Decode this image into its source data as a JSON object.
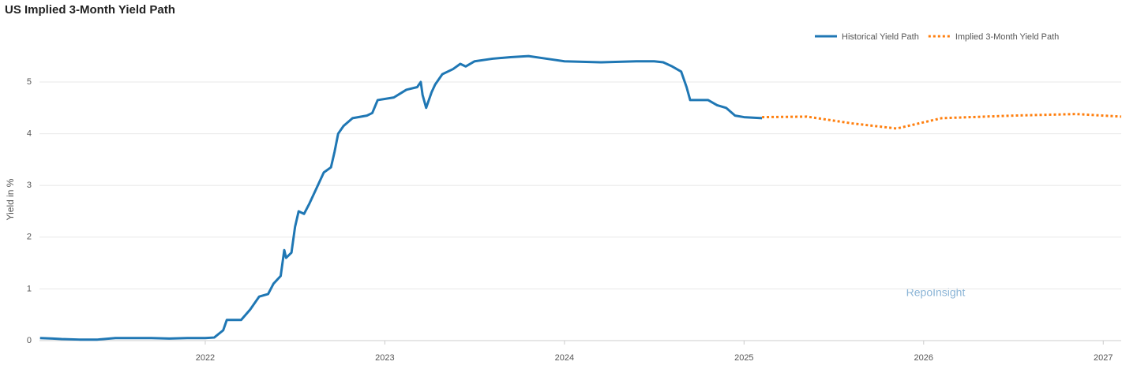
{
  "chart_data": {
    "type": "line",
    "title": "US Implied 3-Month Yield Path",
    "y_label": "Yield in %",
    "watermark": "RepoInsight",
    "xlim": [
      2021.077,
      2027.1
    ],
    "xticks": [
      2022,
      2023,
      2024,
      2025,
      2026,
      2027
    ],
    "ylim": [
      0,
      5.67
    ],
    "yticks": [
      0,
      1,
      2,
      3,
      4,
      5
    ],
    "grid": true,
    "legend": "top-right",
    "series": [
      {
        "name": "Historical Yield Path",
        "color": "#1f77b4",
        "style": "solid",
        "x": [
          2021.08,
          2021.15,
          2021.2,
          2021.3,
          2021.4,
          2021.5,
          2021.6,
          2021.7,
          2021.8,
          2021.9,
          2022.0,
          2022.05,
          2022.1,
          2022.12,
          2022.2,
          2022.25,
          2022.3,
          2022.35,
          2022.38,
          2022.42,
          2022.44,
          2022.45,
          2022.48,
          2022.5,
          2022.52,
          2022.55,
          2022.58,
          2022.62,
          2022.66,
          2022.7,
          2022.72,
          2022.74,
          2022.77,
          2022.82,
          2022.9,
          2022.93,
          2022.96,
          2023.05,
          2023.12,
          2023.18,
          2023.2,
          2023.21,
          2023.23,
          2023.26,
          2023.28,
          2023.32,
          2023.38,
          2023.42,
          2023.45,
          2023.5,
          2023.6,
          2023.7,
          2023.8,
          2023.9,
          2024.0,
          2024.2,
          2024.4,
          2024.5,
          2024.55,
          2024.6,
          2024.65,
          2024.68,
          2024.7,
          2024.8,
          2024.85,
          2024.9,
          2024.95,
          2025.0,
          2025.1
        ],
        "values": [
          0.05,
          0.04,
          0.03,
          0.02,
          0.02,
          0.05,
          0.05,
          0.05,
          0.04,
          0.05,
          0.05,
          0.06,
          0.2,
          0.4,
          0.4,
          0.6,
          0.85,
          0.9,
          1.1,
          1.25,
          1.75,
          1.6,
          1.7,
          2.2,
          2.5,
          2.45,
          2.65,
          2.95,
          3.25,
          3.35,
          3.65,
          4.0,
          4.15,
          4.3,
          4.35,
          4.4,
          4.65,
          4.7,
          4.85,
          4.9,
          5.0,
          4.75,
          4.5,
          4.8,
          4.95,
          5.15,
          5.25,
          5.35,
          5.3,
          5.4,
          5.45,
          5.48,
          5.5,
          5.45,
          5.4,
          5.38,
          5.4,
          5.4,
          5.38,
          5.3,
          5.2,
          4.9,
          4.65,
          4.65,
          4.55,
          4.5,
          4.35,
          4.32,
          4.3
        ]
      },
      {
        "name": "Implied 3-Month Yield Path",
        "color": "#ff7f0e",
        "style": "dotted",
        "x": [
          2025.1,
          2025.35,
          2025.6,
          2025.85,
          2026.1,
          2026.5,
          2026.85,
          2027.1
        ],
        "values": [
          4.32,
          4.33,
          4.2,
          4.1,
          4.3,
          4.35,
          4.38,
          4.33
        ]
      }
    ]
  }
}
